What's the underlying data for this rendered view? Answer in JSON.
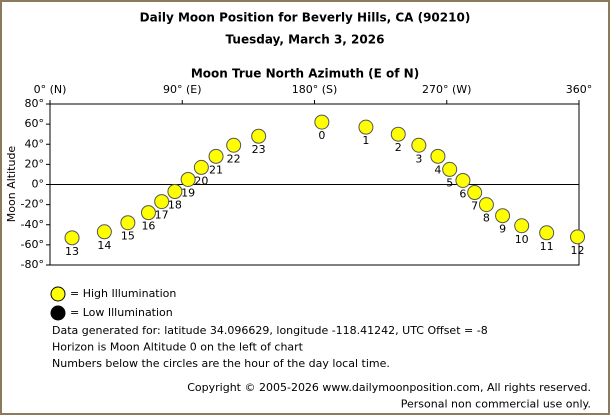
{
  "chart_data": {
    "type": "scatter",
    "title": "Daily Moon Position for Beverly Hills, CA (90210)",
    "subtitle": "Tuesday, March 3, 2026",
    "x_label": "Moon True North Azimuth (E of N)",
    "y_label": "Moon Altitude",
    "point_labels": [
      "0",
      "1",
      "2",
      "3",
      "4",
      "5",
      "6",
      "7",
      "8",
      "9",
      "10",
      "11",
      "12",
      "13",
      "14",
      "15",
      "16",
      "17",
      "18",
      "19",
      "20",
      "21",
      "22",
      "23"
    ],
    "x": [
      185,
      215,
      237,
      251,
      264,
      272,
      281,
      289,
      297,
      308,
      321,
      338,
      359,
      15,
      37,
      53,
      67,
      76,
      85,
      94,
      103,
      113,
      125,
      142
    ],
    "values": [
      62,
      57,
      50,
      39,
      28,
      15,
      4,
      -8,
      -20,
      -31,
      -41,
      -48,
      -52,
      -53,
      -47,
      -38,
      -28,
      -17,
      -7,
      5,
      17,
      28,
      39,
      48
    ],
    "color": "#ffff00",
    "xlim": [
      0,
      360
    ],
    "xticks": [
      {
        "value": 0,
        "label": "0° (N)"
      },
      {
        "value": 90,
        "label": "90° (E)"
      },
      {
        "value": 180,
        "label": "180° (S)"
      },
      {
        "value": 270,
        "label": "270° (W)"
      },
      {
        "value": 360,
        "label": "360°"
      }
    ],
    "ylim": [
      -80,
      80
    ],
    "yticks": [
      {
        "value": 80,
        "label": "80°"
      },
      {
        "value": 60,
        "label": "60°"
      },
      {
        "value": 40,
        "label": "40°"
      },
      {
        "value": 20,
        "label": "20°"
      },
      {
        "value": 0,
        "label": "0°"
      },
      {
        "value": -20,
        "label": "-20°"
      },
      {
        "value": -40,
        "label": "-40°"
      },
      {
        "value": -60,
        "label": "-60°"
      },
      {
        "value": -80,
        "label": "-80°"
      }
    ],
    "legend": [
      {
        "label": "= High Illumination",
        "color": "#ffff00"
      },
      {
        "label": "= Low Illumination",
        "color": "#000000"
      }
    ],
    "notes": [
      "Data generated for: latitude 34.096629, longitude -118.41242, UTC Offset = -8",
      "Horizon is Moon Altitude 0 on the left of chart",
      "Numbers below the circles are the hour of the day local time."
    ],
    "copyright": [
      "Copyright © 2005-2026 www.dailymoonposition.com, All rights reserved.",
      "Personal non commercial use only."
    ]
  }
}
